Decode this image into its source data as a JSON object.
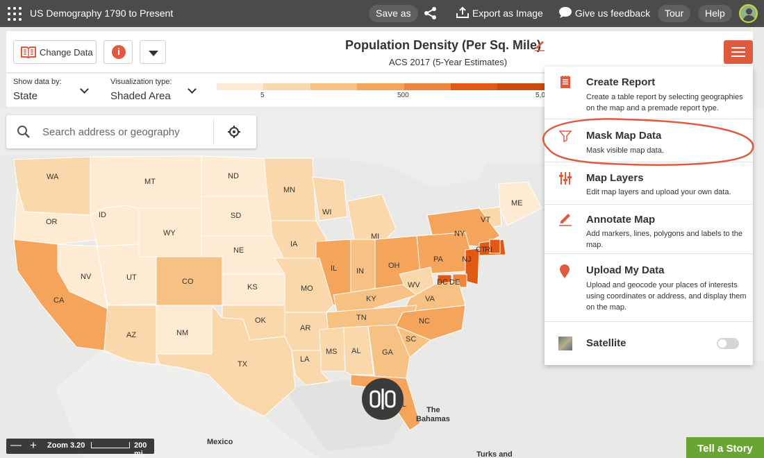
{
  "app": {
    "title": "US Demography 1790 to Present"
  },
  "topbar": {
    "save_as": "Save as",
    "export": "Export as Image",
    "feedback": "Give us feedback",
    "tour": "Tour",
    "help": "Help"
  },
  "header": {
    "change_data": "Change Data",
    "title": "Population Density (Per Sq. Mile)",
    "subtitle": "ACS 2017 (5-Year Estimates)"
  },
  "controls": {
    "show_by_label": "Show data by:",
    "show_by_value": "State",
    "vis_label": "Visualization type:",
    "vis_value": "Shaded Area"
  },
  "legend": {
    "colors": [
      "#fdebd3",
      "#fbd8ab",
      "#f8c184",
      "#f4a55b",
      "#ee853a",
      "#e15a14",
      "#cc4a0a"
    ],
    "ticks": [
      "5",
      "500",
      "5,0"
    ]
  },
  "search": {
    "placeholder": "Search address or geography"
  },
  "map": {
    "states": [
      {
        "abbr": "WA",
        "color": "#fbd8ab"
      },
      {
        "abbr": "MT",
        "color": "#fdebd3"
      },
      {
        "abbr": "ND",
        "color": "#fdebd3"
      },
      {
        "abbr": "MN",
        "color": "#fbd8ab"
      },
      {
        "abbr": "ME",
        "color": "#fdebd3"
      },
      {
        "abbr": "OR",
        "color": "#fdebd3"
      },
      {
        "abbr": "ID",
        "color": "#fdebd3"
      },
      {
        "abbr": "SD",
        "color": "#fdebd3"
      },
      {
        "abbr": "WI",
        "color": "#fbd8ab"
      },
      {
        "abbr": "VT",
        "color": "#fbd8ab"
      },
      {
        "abbr": "WY",
        "color": "#fdebd3"
      },
      {
        "abbr": "NY",
        "color": "#f4a55b"
      },
      {
        "abbr": "MI",
        "color": "#fbd8ab"
      },
      {
        "abbr": "IA",
        "color": "#fbd8ab"
      },
      {
        "abbr": "NE",
        "color": "#fdebd3"
      },
      {
        "abbr": "CT",
        "color": "#e15a14"
      },
      {
        "abbr": "RI",
        "color": "#e15a14"
      },
      {
        "abbr": "NV",
        "color": "#fdebd3"
      },
      {
        "abbr": "UT",
        "color": "#fdebd3"
      },
      {
        "abbr": "IL",
        "color": "#f4a55b"
      },
      {
        "abbr": "IN",
        "color": "#f8c184"
      },
      {
        "abbr": "OH",
        "color": "#f4a55b"
      },
      {
        "abbr": "PA",
        "color": "#f4a55b"
      },
      {
        "abbr": "NJ",
        "color": "#e15a14"
      },
      {
        "abbr": "CO",
        "color": "#f8c184"
      },
      {
        "abbr": "KS",
        "color": "#fdebd3"
      },
      {
        "abbr": "MO",
        "color": "#fbd8ab"
      },
      {
        "abbr": "WV",
        "color": "#fbd8ab"
      },
      {
        "abbr": "DC",
        "color": "#e15a14"
      },
      {
        "abbr": "DE",
        "color": "#ee853a"
      },
      {
        "abbr": "CA",
        "color": "#f4a55b"
      },
      {
        "abbr": "KY",
        "color": "#f8c184"
      },
      {
        "abbr": "VA",
        "color": "#f8c184"
      },
      {
        "abbr": "TN",
        "color": "#f8c184"
      },
      {
        "abbr": "NC",
        "color": "#f4a55b"
      },
      {
        "abbr": "OK",
        "color": "#fbd8ab"
      },
      {
        "abbr": "AR",
        "color": "#fbd8ab"
      },
      {
        "abbr": "AZ",
        "color": "#fbd8ab"
      },
      {
        "abbr": "NM",
        "color": "#fdebd3"
      },
      {
        "abbr": "SC",
        "color": "#f8c184"
      },
      {
        "abbr": "MS",
        "color": "#fbd8ab"
      },
      {
        "abbr": "AL",
        "color": "#fbd8ab"
      },
      {
        "abbr": "GA",
        "color": "#f8c184"
      },
      {
        "abbr": "TX",
        "color": "#fbd8ab"
      },
      {
        "abbr": "LA",
        "color": "#fbd8ab"
      },
      {
        "abbr": "FL",
        "color": "#f4a55b"
      }
    ],
    "places": {
      "mexico": "Mexico",
      "bahamas_1": "The",
      "bahamas_2": "Bahamas",
      "turks": "Turks and"
    }
  },
  "menu": {
    "items": [
      {
        "title": "Create Report",
        "desc": "Create a table report by selecting geographies on the map and a premade report type.",
        "icon": "report-icon"
      },
      {
        "title": "Mask Map Data",
        "desc": "Mask visible map data.",
        "icon": "filter-icon"
      },
      {
        "title": "Map Layers",
        "desc": "Edit map layers and upload your own data.",
        "icon": "layers-sliders-icon"
      },
      {
        "title": "Annotate Map",
        "desc": "Add markers, lines, polygons and labels to the map.",
        "icon": "pencil-icon"
      },
      {
        "title": "Upload My Data",
        "desc": "Upload and geocode your places of interests using coordinates or address, and display them on the map.",
        "icon": "map-pin-icon"
      },
      {
        "title": "Satellite",
        "icon": "satellite-thumbnail-icon"
      }
    ],
    "satellite_on": false
  },
  "zoom": {
    "label": "Zoom 3.20",
    "scale": "200 mi"
  },
  "story": {
    "label": "Tell a Story"
  },
  "accent_color": "#e05a40",
  "story_color": "#69a534"
}
